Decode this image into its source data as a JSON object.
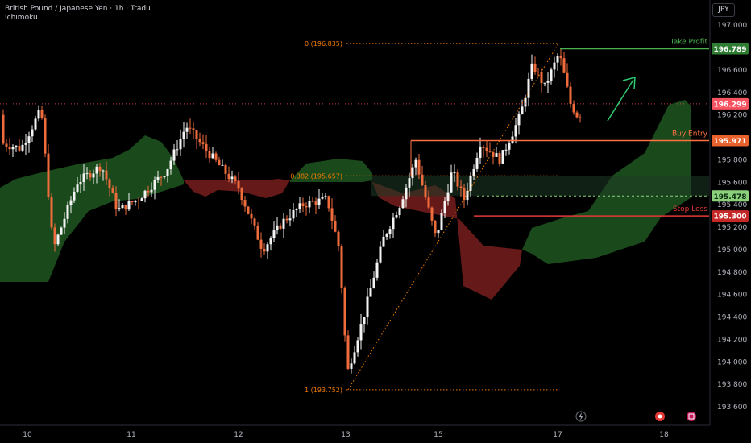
{
  "header": {
    "symbol": "British Pound / Japanese Yen · 1h · Tradu",
    "indicator": "Ichimoku"
  },
  "currency_button": "JPY",
  "y_axis_ticks": [
    "197.000",
    "196.800",
    "196.600",
    "196.400",
    "196.200",
    "196.000",
    "195.800",
    "195.600",
    "195.400",
    "195.200",
    "195.000",
    "194.800",
    "194.600",
    "194.400",
    "194.200",
    "194.000",
    "193.800",
    "193.600"
  ],
  "x_axis_ticks": [
    "10",
    "11",
    "12",
    "13",
    "15",
    "17",
    "18"
  ],
  "levels": {
    "take_profit": {
      "label": "Take Profit",
      "price": "196.789",
      "color": "#4caf50"
    },
    "buy_entry": {
      "label": "Buy Entry",
      "price": "195.971",
      "color": "#ff7043"
    },
    "stop_loss": {
      "label": "Stop Loss",
      "price": "195.300",
      "color": "#e53935"
    },
    "current": {
      "price": "196.299",
      "color": "#f7525f"
    },
    "cloud_level": {
      "price": "195.478",
      "color": "#8bd17c"
    }
  },
  "fib": {
    "level_0": "0 (196.835)",
    "level_0382": "0.382 (195.657)",
    "level_1": "1 (193.752)",
    "color": "#f57c00"
  },
  "colors": {
    "up": "#f4f4f4",
    "down": "#ef6c3d",
    "cloud_bull": "#1b4d1e",
    "cloud_bear": "#6b1a1a",
    "arrow": "#2ecc71"
  },
  "icons": [
    "lightning-icon",
    "record-icon",
    "gift-icon"
  ]
}
